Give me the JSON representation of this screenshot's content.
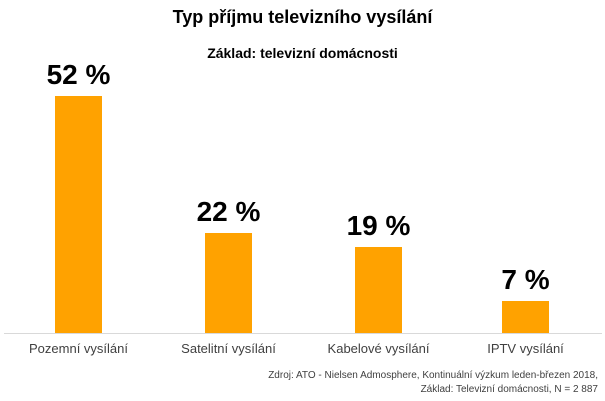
{
  "chart_data": {
    "type": "bar",
    "title": "Typ příjmu televizního vysílání",
    "subtitle": "Základ: televizní domácnosti",
    "categories": [
      "Pozemní vysílání",
      "Satelitní vysílání",
      "Kabelové vysílání",
      "IPTV vysílání"
    ],
    "values": [
      52,
      22,
      19,
      7
    ],
    "value_labels": [
      "52 %",
      "22 %",
      "19 %",
      "7 %"
    ],
    "unit": "%",
    "ylim": [
      0,
      55
    ],
    "grid": false,
    "legend": "none",
    "bar_color": "#FFA200",
    "axis_line_color": "#D9D9D9",
    "label_color": "#000000",
    "category_label_color": "#404040"
  },
  "footer": {
    "lines": [
      "Zdroj: ATO - Nielsen Admosphere, Kontinuální výzkum leden-březen 2018,",
      "Základ: Televizní domácnosti, N = 2 887"
    ]
  }
}
